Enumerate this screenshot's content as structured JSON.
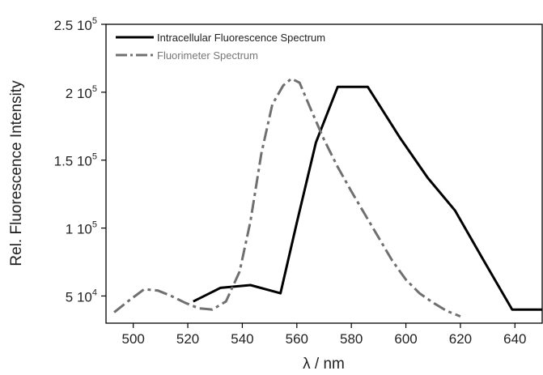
{
  "chart_data": {
    "type": "line",
    "xlabel": "λ / nm",
    "ylabel": "Rel. Fluorescence Intensity",
    "xlim": [
      490,
      650
    ],
    "ylim": [
      30000,
      250000
    ],
    "x_ticks": [
      500,
      520,
      540,
      560,
      580,
      600,
      620,
      640
    ],
    "y_ticks": [
      {
        "value": 250000,
        "mantissa": "2.5",
        "exponent": "5"
      },
      {
        "value": 200000,
        "mantissa": "2",
        "exponent": "5"
      },
      {
        "value": 150000,
        "mantissa": "1.5",
        "exponent": "5"
      },
      {
        "value": 100000,
        "mantissa": "1",
        "exponent": "5"
      },
      {
        "value": 50000,
        "mantissa": "5",
        "exponent": "4"
      }
    ],
    "grid": false,
    "legend_position": "top-left",
    "series": [
      {
        "name": "Intracellular Fluorescence Spectrum",
        "style": "solid",
        "color": "#000000",
        "x": [
          522,
          532,
          543,
          554,
          560,
          567,
          575,
          586,
          598,
          608,
          618,
          628,
          639,
          650
        ],
        "y": [
          46000,
          56000,
          58000,
          52000,
          104000,
          163000,
          204000,
          204000,
          166000,
          137000,
          113000,
          78000,
          40000,
          40000
        ]
      },
      {
        "name": "Fluorimeter Spectrum",
        "style": "dashdot",
        "color": "#707070",
        "x": [
          493,
          498,
          504,
          509,
          514,
          519,
          524,
          529,
          534,
          539,
          543,
          547,
          551,
          555,
          558,
          561,
          565,
          570,
          575,
          580,
          585,
          590,
          595,
          600,
          605,
          610,
          615,
          620
        ],
        "y": [
          38000,
          46000,
          55000,
          54000,
          50000,
          45000,
          41000,
          40000,
          46000,
          68000,
          105000,
          155000,
          191000,
          205000,
          210000,
          207000,
          188000,
          165000,
          145000,
          127000,
          110000,
          93000,
          76000,
          62000,
          52000,
          45000,
          39000,
          35000
        ]
      }
    ]
  }
}
